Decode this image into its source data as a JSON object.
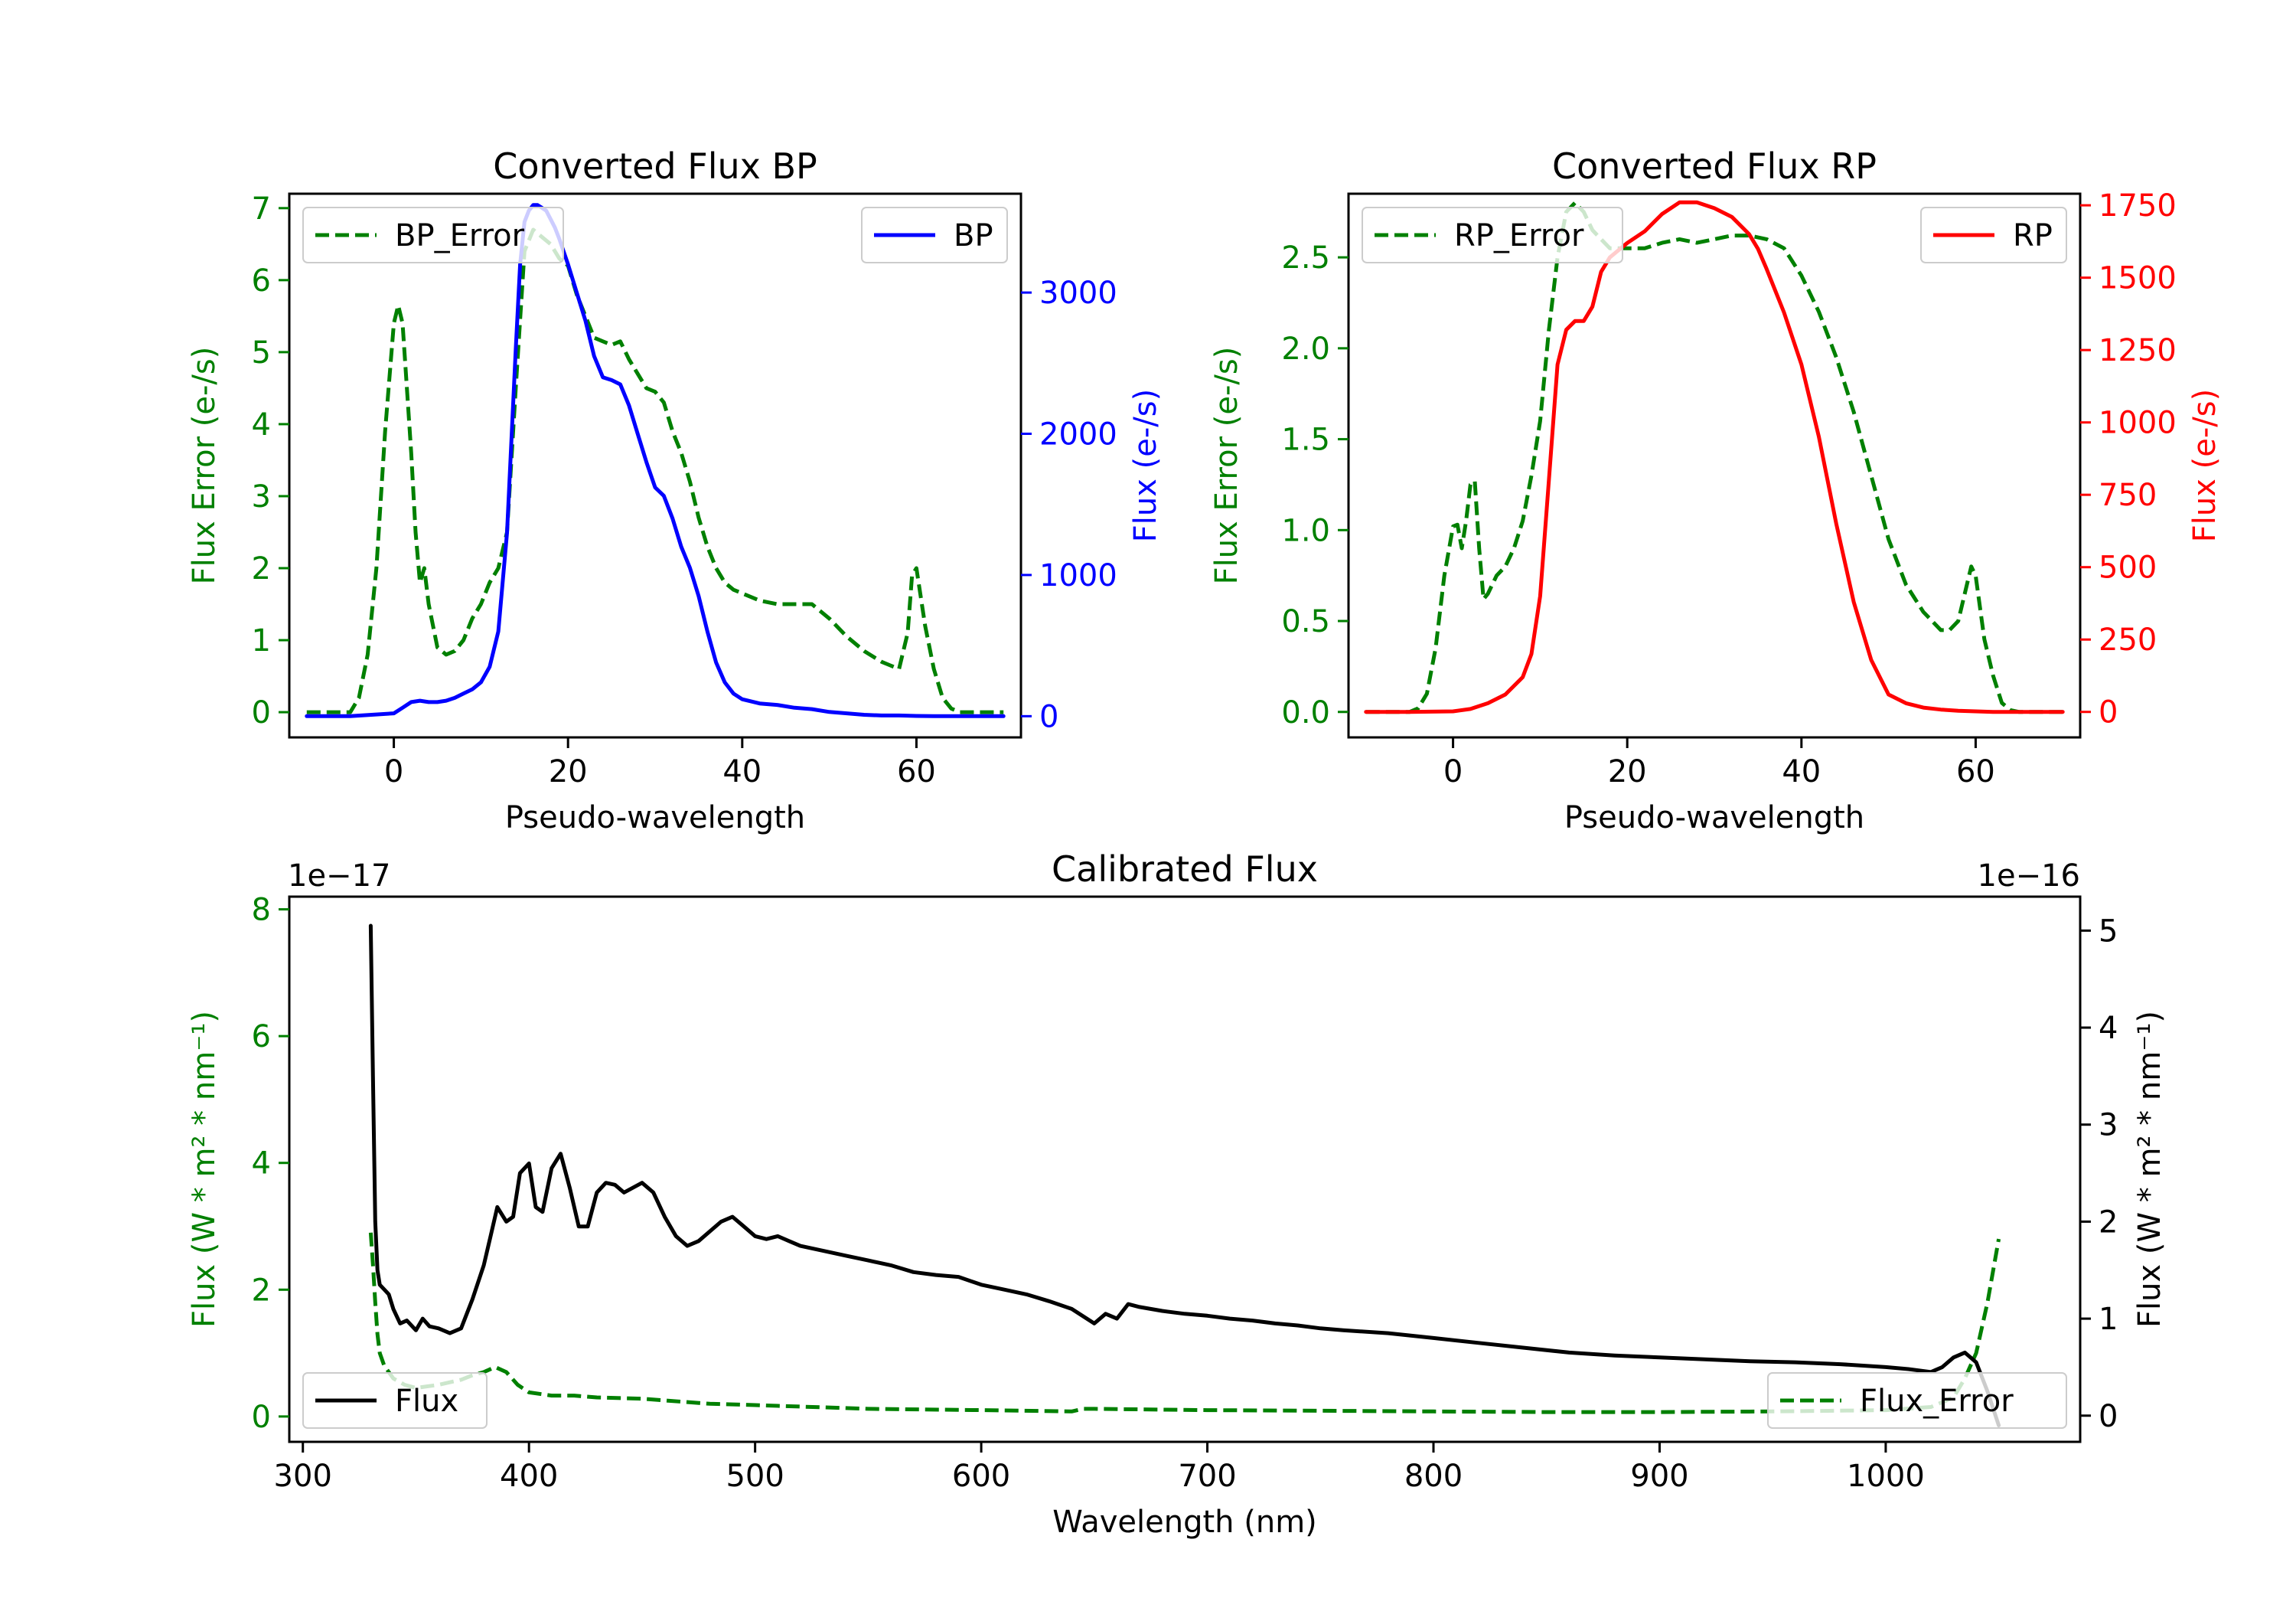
{
  "chart_data": [
    {
      "id": "bp",
      "type": "line",
      "title": "Converted Flux BP",
      "xlabel": "Pseudo-wavelength",
      "ylabel_left": "Flux Error (e-/s)",
      "ylabel_right": "Flux (e-/s)",
      "xlim": [
        -12,
        72
      ],
      "ylim_left": [
        -0.35,
        7.2
      ],
      "ylim_right": [
        -150,
        3700
      ],
      "x_ticks": [
        0,
        20,
        40,
        60
      ],
      "left_ticks": [
        0,
        1,
        2,
        3,
        4,
        5,
        6,
        7
      ],
      "right_ticks": [
        0,
        1000,
        2000,
        3000
      ],
      "left_color": "#008000",
      "right_color": "#0000ff",
      "legend_left": {
        "label": "BP_Error",
        "location": "top-left"
      },
      "legend_right": {
        "label": "BP",
        "location": "top-right"
      },
      "series": [
        {
          "name": "BP_Error",
          "axis": "left",
          "color": "#008000",
          "dashed": true,
          "x": [
            -10,
            -5,
            -4,
            -3,
            -2,
            -1,
            0,
            0.5,
            1,
            2,
            2.5,
            3,
            3.5,
            4,
            5,
            6,
            7,
            8,
            9,
            10,
            11,
            12,
            13,
            14,
            15,
            16,
            17,
            18,
            19,
            20,
            21,
            22,
            23,
            24,
            25,
            26,
            27,
            28,
            29,
            30,
            31,
            32,
            33,
            34,
            35,
            36,
            37,
            38,
            39,
            40,
            42,
            44,
            46,
            48,
            50,
            52,
            54,
            56,
            57,
            58,
            59,
            59.5,
            60,
            61,
            62,
            63,
            64,
            65,
            70
          ],
          "y": [
            0,
            0,
            0.2,
            0.8,
            2.0,
            3.9,
            5.4,
            5.65,
            5.4,
            3.6,
            2.5,
            1.8,
            2.0,
            1.5,
            0.9,
            0.8,
            0.85,
            1.0,
            1.3,
            1.5,
            1.8,
            2.0,
            2.5,
            4.5,
            6.4,
            6.7,
            6.6,
            6.5,
            6.3,
            6.2,
            5.8,
            5.5,
            5.2,
            5.15,
            5.1,
            5.15,
            4.9,
            4.7,
            4.5,
            4.45,
            4.3,
            3.9,
            3.6,
            3.2,
            2.7,
            2.3,
            2.0,
            1.8,
            1.7,
            1.65,
            1.55,
            1.5,
            1.5,
            1.5,
            1.3,
            1.05,
            0.85,
            0.7,
            0.65,
            0.6,
            1.1,
            1.9,
            2.0,
            1.2,
            0.6,
            0.2,
            0.05,
            0,
            0
          ]
        },
        {
          "name": "BP",
          "axis": "right",
          "color": "#0000ff",
          "dashed": false,
          "x": [
            -10,
            -5,
            0,
            1,
            2,
            3,
            4,
            5,
            6,
            7,
            8,
            9,
            10,
            11,
            12,
            13,
            14,
            14.5,
            15,
            15.5,
            16,
            16.5,
            17,
            17.5,
            18,
            18.5,
            19,
            20,
            21,
            22,
            23,
            24,
            25,
            26,
            27,
            28,
            29,
            30,
            31,
            32,
            33,
            34,
            35,
            36,
            37,
            38,
            39,
            40,
            42,
            44,
            46,
            48,
            50,
            52,
            54,
            56,
            58,
            60,
            62,
            64,
            66,
            70
          ],
          "y": [
            0,
            0,
            20,
            60,
            100,
            110,
            100,
            100,
            110,
            130,
            160,
            190,
            240,
            350,
            600,
            1300,
            2600,
            3200,
            3500,
            3580,
            3620,
            3620,
            3600,
            3580,
            3520,
            3460,
            3380,
            3200,
            3000,
            2800,
            2550,
            2400,
            2380,
            2350,
            2200,
            2000,
            1800,
            1620,
            1560,
            1400,
            1200,
            1050,
            850,
            600,
            380,
            240,
            160,
            120,
            90,
            80,
            60,
            50,
            30,
            20,
            10,
            5,
            5,
            2,
            0,
            0,
            0,
            0
          ]
        }
      ]
    },
    {
      "id": "rp",
      "type": "line",
      "title": "Converted Flux RP",
      "xlabel": "Pseudo-wavelength",
      "ylabel_left": "Flux Error (e-/s)",
      "ylabel_right": "Flux (e-/s)",
      "xlim": [
        -12,
        72
      ],
      "ylim_left": [
        -0.14,
        2.85
      ],
      "ylim_right": [
        -88,
        1790
      ],
      "x_ticks": [
        0,
        20,
        40,
        60
      ],
      "left_ticks": [
        0.0,
        0.5,
        1.0,
        1.5,
        2.0,
        2.5
      ],
      "left_tick_labels": [
        "0.0",
        "0.5",
        "1.0",
        "1.5",
        "2.0",
        "2.5"
      ],
      "right_ticks": [
        0,
        250,
        500,
        750,
        1000,
        1250,
        1500,
        1750
      ],
      "left_color": "#008000",
      "right_color": "#ff0000",
      "legend_left": {
        "label": "RP_Error",
        "location": "top-left"
      },
      "legend_right": {
        "label": "RP",
        "location": "top-right"
      },
      "series": [
        {
          "name": "RP_Error",
          "axis": "left",
          "color": "#008000",
          "dashed": true,
          "x": [
            -10,
            -5,
            -4,
            -3,
            -2,
            -1,
            0,
            0.5,
            1,
            1.5,
            2,
            2.5,
            3,
            3.5,
            4,
            5,
            6,
            7,
            8,
            9,
            10,
            11,
            12,
            13,
            14,
            15,
            16,
            17,
            18,
            20,
            22,
            24,
            26,
            28,
            30,
            32,
            34,
            36,
            38,
            40,
            42,
            44,
            46,
            48,
            50,
            52,
            54,
            55,
            56,
            57,
            58,
            59,
            59.5,
            60,
            61,
            62,
            63,
            64,
            65,
            70
          ],
          "y": [
            0,
            0,
            0.02,
            0.1,
            0.35,
            0.75,
            1.02,
            1.03,
            0.9,
            1.05,
            1.25,
            1.27,
            0.9,
            0.62,
            0.65,
            0.75,
            0.8,
            0.9,
            1.05,
            1.3,
            1.6,
            2.1,
            2.5,
            2.75,
            2.8,
            2.75,
            2.65,
            2.6,
            2.55,
            2.55,
            2.55,
            2.58,
            2.6,
            2.58,
            2.6,
            2.62,
            2.62,
            2.6,
            2.55,
            2.4,
            2.2,
            1.95,
            1.65,
            1.3,
            0.95,
            0.7,
            0.55,
            0.5,
            0.45,
            0.45,
            0.5,
            0.7,
            0.8,
            0.75,
            0.4,
            0.2,
            0.05,
            0.01,
            0,
            0
          ]
        },
        {
          "name": "RP",
          "axis": "right",
          "color": "#ff0000",
          "dashed": false,
          "x": [
            -10,
            -5,
            0,
            2,
            4,
            6,
            8,
            9,
            10,
            11,
            12,
            13,
            14,
            15,
            16,
            17,
            18,
            20,
            22,
            24,
            26,
            28,
            30,
            32,
            34,
            35,
            36,
            38,
            40,
            42,
            44,
            46,
            48,
            50,
            52,
            54,
            56,
            58,
            60,
            62,
            64,
            66,
            70
          ],
          "y": [
            0,
            0,
            2,
            10,
            30,
            60,
            120,
            200,
            400,
            800,
            1200,
            1320,
            1350,
            1350,
            1400,
            1520,
            1570,
            1620,
            1660,
            1720,
            1760,
            1760,
            1740,
            1710,
            1650,
            1600,
            1530,
            1380,
            1200,
            950,
            650,
            380,
            180,
            60,
            30,
            15,
            8,
            4,
            2,
            0,
            0,
            0,
            0
          ]
        }
      ]
    },
    {
      "id": "calibrated",
      "type": "line",
      "title": "Calibrated Flux",
      "xlabel": "Wavelength (nm)",
      "ylabel_left": "Flux (W * m² * nm⁻¹)",
      "ylabel_right": "Flux (W * m² * nm⁻¹)",
      "offset_left": "1e−17",
      "offset_right": "1e−16",
      "xlim": [
        294,
        1086
      ],
      "ylim_left": [
        -0.4,
        8.2
      ],
      "ylim_right": [
        -0.27,
        5.35
      ],
      "x_ticks": [
        300,
        400,
        500,
        600,
        700,
        800,
        900,
        1000
      ],
      "left_ticks": [
        0,
        2,
        4,
        6,
        8
      ],
      "right_ticks": [
        0,
        1,
        2,
        3,
        4,
        5
      ],
      "left_color": "#008000",
      "right_color": "#000000",
      "legend_left": {
        "label": "Flux",
        "location": "bottom-left"
      },
      "legend_right": {
        "label": "Flux_Error",
        "location": "bottom-right"
      },
      "series": [
        {
          "name": "Flux_Error",
          "axis": "left",
          "color": "#008000",
          "dashed": true,
          "x": [
            330,
            331,
            332,
            333,
            334,
            336,
            338,
            340,
            345,
            350,
            360,
            370,
            375,
            380,
            385,
            390,
            395,
            400,
            410,
            420,
            430,
            450,
            480,
            500,
            550,
            600,
            640,
            645,
            650,
            700,
            750,
            800,
            850,
            900,
            950,
            1000,
            1020,
            1030,
            1035,
            1040,
            1045,
            1050
          ],
          "y": [
            2.9,
            2.4,
            1.8,
            1.3,
            1.0,
            0.8,
            0.7,
            0.6,
            0.5,
            0.45,
            0.5,
            0.58,
            0.65,
            0.7,
            0.78,
            0.7,
            0.5,
            0.38,
            0.33,
            0.33,
            0.3,
            0.28,
            0.2,
            0.18,
            0.12,
            0.1,
            0.08,
            0.12,
            0.12,
            0.1,
            0.09,
            0.08,
            0.07,
            0.07,
            0.08,
            0.1,
            0.15,
            0.3,
            0.6,
            1.0,
            1.8,
            2.8
          ]
        },
        {
          "name": "Flux",
          "axis": "right",
          "color": "#000000",
          "dashed": false,
          "x": [
            330,
            331,
            332,
            333,
            334,
            336,
            338,
            340,
            343,
            346,
            350,
            353,
            356,
            360,
            365,
            370,
            375,
            380,
            383,
            386,
            390,
            393,
            396,
            400,
            403,
            406,
            410,
            414,
            418,
            422,
            426,
            430,
            434,
            438,
            442,
            446,
            450,
            455,
            460,
            465,
            470,
            475,
            480,
            485,
            490,
            495,
            500,
            505,
            510,
            515,
            520,
            530,
            540,
            550,
            560,
            570,
            580,
            590,
            600,
            610,
            620,
            630,
            640,
            650,
            655,
            660,
            665,
            670,
            680,
            690,
            700,
            710,
            720,
            730,
            740,
            750,
            760,
            780,
            800,
            820,
            840,
            860,
            880,
            900,
            920,
            940,
            960,
            980,
            1000,
            1010,
            1020,
            1025,
            1030,
            1035,
            1040,
            1045,
            1050
          ],
          "y": [
            5.05,
            3.5,
            2.0,
            1.5,
            1.35,
            1.3,
            1.25,
            1.1,
            0.95,
            0.98,
            0.88,
            1.0,
            0.92,
            0.9,
            0.85,
            0.9,
            1.2,
            1.55,
            1.85,
            2.15,
            2.0,
            2.05,
            2.5,
            2.6,
            2.15,
            2.1,
            2.55,
            2.7,
            2.35,
            1.95,
            1.95,
            2.3,
            2.4,
            2.38,
            2.3,
            2.35,
            2.4,
            2.3,
            2.05,
            1.85,
            1.75,
            1.8,
            1.9,
            2.0,
            2.05,
            1.95,
            1.85,
            1.82,
            1.85,
            1.8,
            1.75,
            1.7,
            1.65,
            1.6,
            1.55,
            1.48,
            1.45,
            1.43,
            1.35,
            1.3,
            1.25,
            1.18,
            1.1,
            0.95,
            1.05,
            1.0,
            1.15,
            1.12,
            1.08,
            1.05,
            1.03,
            1.0,
            0.98,
            0.95,
            0.93,
            0.9,
            0.88,
            0.85,
            0.8,
            0.75,
            0.7,
            0.65,
            0.62,
            0.6,
            0.58,
            0.56,
            0.55,
            0.53,
            0.5,
            0.48,
            0.45,
            0.5,
            0.6,
            0.65,
            0.55,
            0.25,
            -0.1
          ]
        }
      ]
    }
  ]
}
